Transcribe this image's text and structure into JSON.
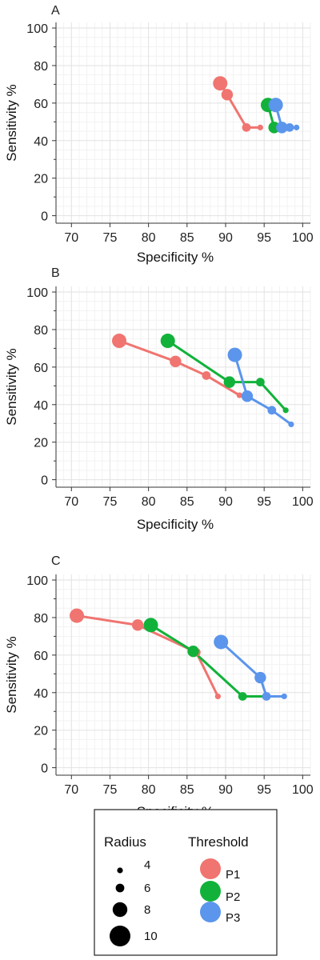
{
  "colors": {
    "P1": "#f07470",
    "P2": "#12b23a",
    "P3": "#5b95ec",
    "grid_major": "#e2e2e2",
    "grid_minor": "#f2f2f2"
  },
  "chart_data": [
    {
      "type": "line",
      "panel_label": "A",
      "xlabel": "Specificity %",
      "ylabel": "Sensitivity %",
      "xlim": [
        68,
        101
      ],
      "ylim": [
        -4,
        103
      ],
      "xticks": [
        70,
        75,
        80,
        85,
        90,
        95,
        100
      ],
      "yticks": [
        0,
        20,
        40,
        60,
        80,
        100
      ],
      "grid": true,
      "series": [
        {
          "name": "P1",
          "points": [
            {
              "x": 89.3,
              "y": 70.5,
              "radius": 10
            },
            {
              "x": 90.2,
              "y": 64.5,
              "radius": 8
            },
            {
              "x": 92.7,
              "y": 47,
              "radius": 6
            },
            {
              "x": 94.5,
              "y": 47,
              "radius": 4
            }
          ]
        },
        {
          "name": "P2",
          "points": [
            {
              "x": 95.5,
              "y": 59,
              "radius": 10
            },
            {
              "x": 96.3,
              "y": 47,
              "radius": 8
            },
            {
              "x": 96.6,
              "y": 47,
              "radius": 6
            }
          ]
        },
        {
          "name": "P3",
          "points": [
            {
              "x": 96.5,
              "y": 59,
              "radius": 10
            },
            {
              "x": 97.3,
              "y": 47,
              "radius": 8
            },
            {
              "x": 98.3,
              "y": 47,
              "radius": 6
            },
            {
              "x": 99.2,
              "y": 47,
              "radius": 4
            }
          ]
        }
      ]
    },
    {
      "type": "line",
      "panel_label": "B",
      "xlabel": "Specificity %",
      "ylabel": "Sensitivity %",
      "xlim": [
        68,
        101
      ],
      "ylim": [
        -4,
        103
      ],
      "xticks": [
        70,
        75,
        80,
        85,
        90,
        95,
        100
      ],
      "yticks": [
        0,
        20,
        40,
        60,
        80,
        100
      ],
      "grid": true,
      "series": [
        {
          "name": "P1",
          "points": [
            {
              "x": 76.2,
              "y": 74,
              "radius": 10
            },
            {
              "x": 83.5,
              "y": 63,
              "radius": 8
            },
            {
              "x": 87.5,
              "y": 55.5,
              "radius": 6
            },
            {
              "x": 91.8,
              "y": 45,
              "radius": 4
            }
          ]
        },
        {
          "name": "P2",
          "points": [
            {
              "x": 82.5,
              "y": 74,
              "radius": 10
            },
            {
              "x": 90.5,
              "y": 52,
              "radius": 8
            },
            {
              "x": 94.5,
              "y": 52,
              "radius": 6
            },
            {
              "x": 97.8,
              "y": 37,
              "radius": 4
            }
          ]
        },
        {
          "name": "P3",
          "points": [
            {
              "x": 91.2,
              "y": 66.5,
              "radius": 10
            },
            {
              "x": 92.8,
              "y": 44.5,
              "radius": 8
            },
            {
              "x": 96.0,
              "y": 37,
              "radius": 6
            },
            {
              "x": 98.5,
              "y": 29.5,
              "radius": 4
            }
          ]
        }
      ]
    },
    {
      "type": "line",
      "panel_label": "C",
      "xlabel": "Specificity %",
      "ylabel": "Sensitivity %",
      "xlim": [
        68,
        101
      ],
      "ylim": [
        -4,
        103
      ],
      "xticks": [
        70,
        75,
        80,
        85,
        90,
        95,
        100
      ],
      "yticks": [
        0,
        20,
        40,
        60,
        80,
        100
      ],
      "grid": true,
      "series": [
        {
          "name": "P1",
          "points": [
            {
              "x": 70.7,
              "y": 81,
              "radius": 10
            },
            {
              "x": 78.6,
              "y": 76,
              "radius": 8
            },
            {
              "x": 86.2,
              "y": 61.5,
              "radius": 6
            },
            {
              "x": 89.0,
              "y": 38,
              "radius": 4
            }
          ]
        },
        {
          "name": "P2",
          "points": [
            {
              "x": 80.3,
              "y": 76,
              "radius": 10
            },
            {
              "x": 85.8,
              "y": 62,
              "radius": 8
            },
            {
              "x": 92.2,
              "y": 38,
              "radius": 6
            },
            {
              "x": 95.2,
              "y": 38,
              "radius": 4
            }
          ]
        },
        {
          "name": "P3",
          "points": [
            {
              "x": 89.4,
              "y": 67,
              "radius": 10
            },
            {
              "x": 94.5,
              "y": 48,
              "radius": 8
            },
            {
              "x": 95.3,
              "y": 38,
              "radius": 6
            },
            {
              "x": 97.6,
              "y": 38,
              "radius": 4
            }
          ]
        }
      ]
    }
  ],
  "legend": {
    "radius_title": "Radius",
    "radius_items": [
      "4",
      "6",
      "8",
      "10"
    ],
    "radius_values": [
      4,
      6,
      8,
      10
    ],
    "threshold_title": "Threshold",
    "threshold_items": [
      "P1",
      "P2",
      "P3"
    ]
  }
}
